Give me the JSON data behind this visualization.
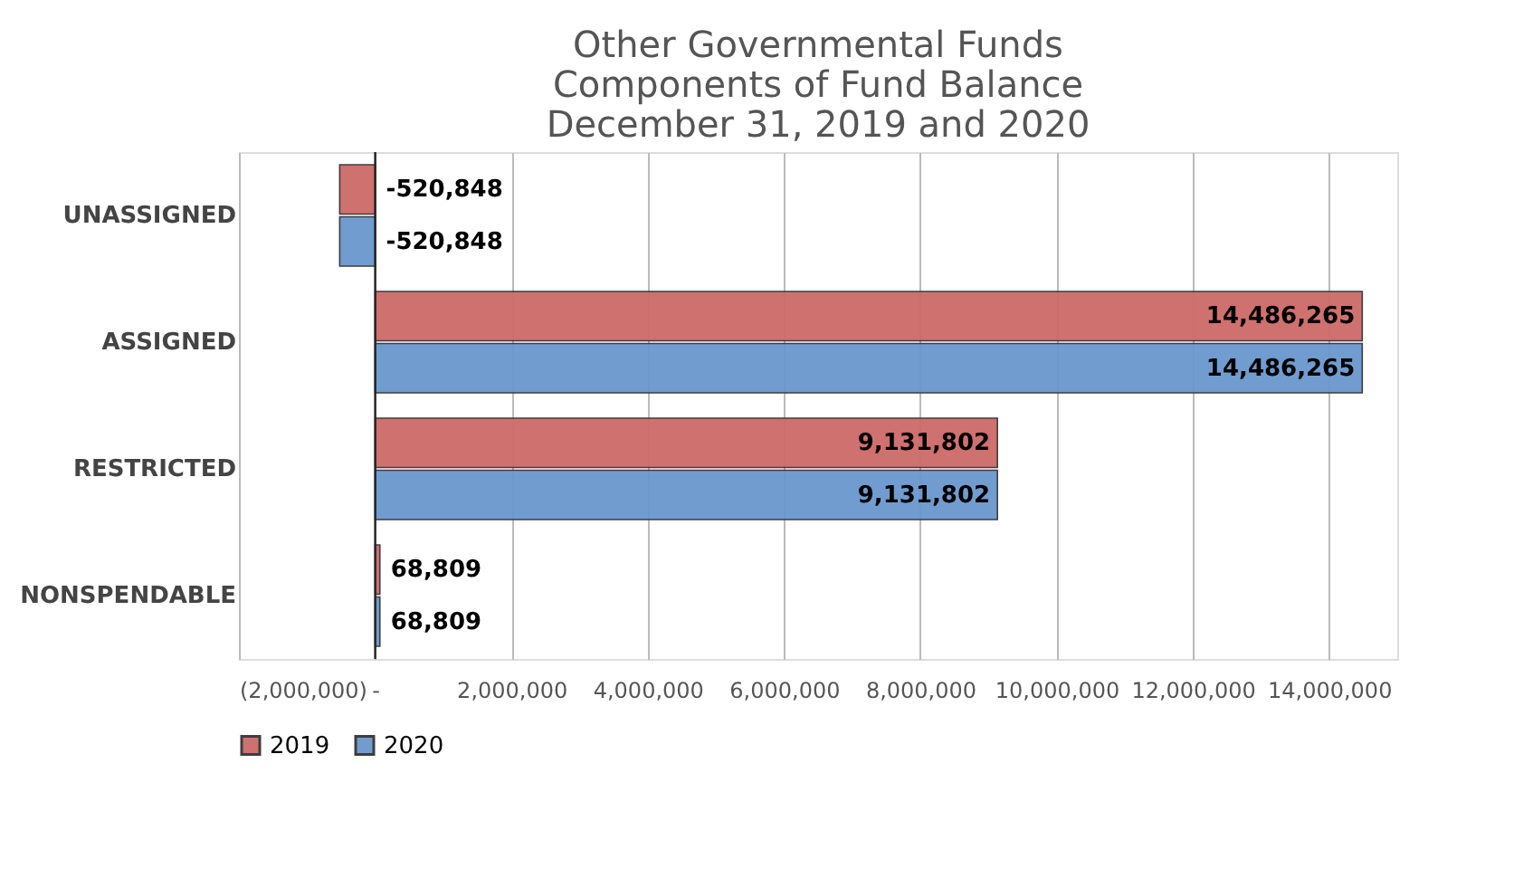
{
  "chart_data": {
    "type": "bar",
    "orientation": "horizontal",
    "title": "Other Governmental Funds\nComponents of Fund Balance\nDecember 31, 2019 and 2020",
    "categories": [
      "UNASSIGNED",
      "ASSIGNED",
      "RESTRICTED",
      "NONSPENDABLE"
    ],
    "series": [
      {
        "name": "2019",
        "color": "#cd6a68",
        "values": [
          -520848,
          14486265,
          9131802,
          68809
        ],
        "value_labels": [
          "-520,848",
          "14,486,265",
          "9,131,802",
          "68,809"
        ]
      },
      {
        "name": "2020",
        "color": "#6a97cd",
        "values": [
          -520848,
          14486265,
          9131802,
          68809
        ],
        "value_labels": [
          "-520,848",
          "14,486,265",
          "9,131,802",
          "68,809"
        ]
      }
    ],
    "xlim": [
      -2000000,
      15000000
    ],
    "xticks": [
      {
        "value": -2000000,
        "label": "(2,000,000)"
      },
      {
        "value": 0,
        "label": "-"
      },
      {
        "value": 2000000,
        "label": "2,000,000"
      },
      {
        "value": 4000000,
        "label": "4,000,000"
      },
      {
        "value": 6000000,
        "label": "6,000,000"
      },
      {
        "value": 8000000,
        "label": "8,000,000"
      },
      {
        "value": 10000000,
        "label": "10,000,000"
      },
      {
        "value": 12000000,
        "label": "12,000,000"
      },
      {
        "value": 14000000,
        "label": "14,000,000"
      }
    ],
    "grid": "x",
    "legend": "bottom"
  }
}
